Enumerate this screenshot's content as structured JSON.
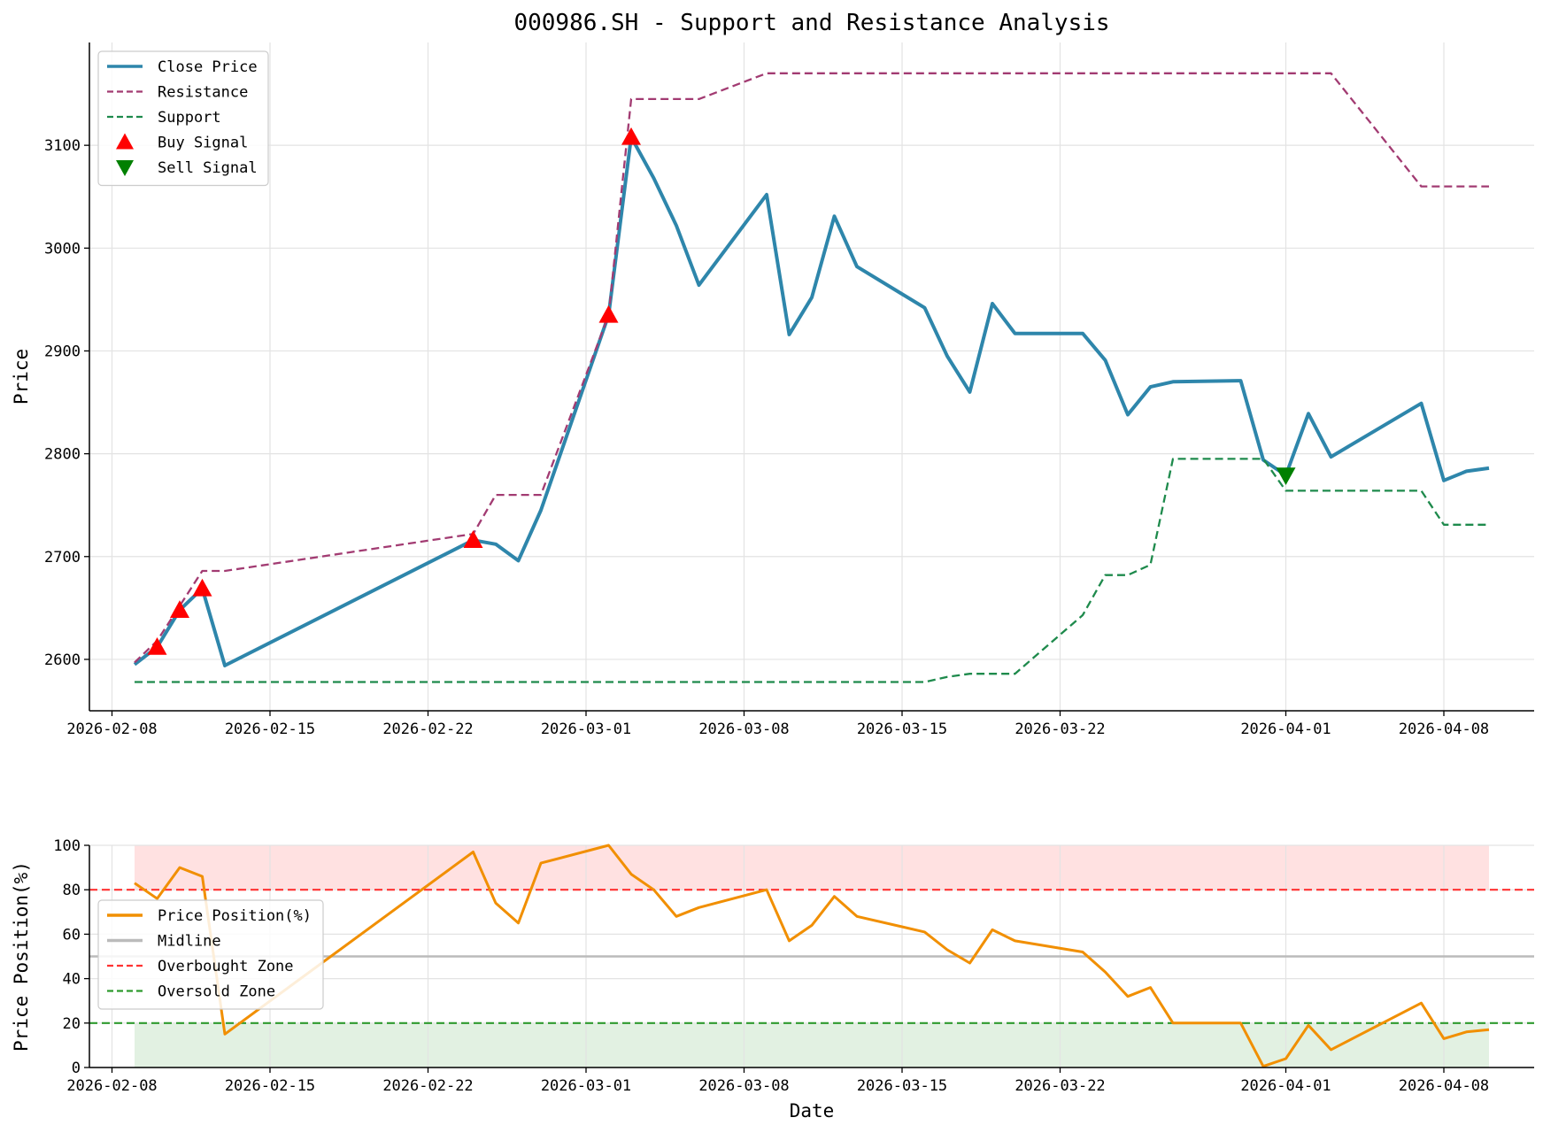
{
  "chart_data": [
    {
      "type": "line",
      "title": "000986.SH - Support and Resistance Analysis",
      "xlabel": "",
      "ylabel": "Price",
      "xlim": [
        "2026-02-07",
        "2026-04-12"
      ],
      "ylim": [
        2550,
        3200
      ],
      "grid": true,
      "legend_position": "top-left",
      "xticks": [
        "2026-02-08",
        "2026-02-15",
        "2026-02-22",
        "2026-03-01",
        "2026-03-08",
        "2026-03-15",
        "2026-03-22",
        "2026-04-01",
        "2026-04-08"
      ],
      "yticks": [
        2600,
        2700,
        2800,
        2900,
        3000,
        3100
      ],
      "x": [
        "2026-02-09",
        "2026-02-10",
        "2026-02-11",
        "2026-02-12",
        "2026-02-13",
        "2026-02-24",
        "2026-02-25",
        "2026-02-26",
        "2026-02-27",
        "2026-03-02",
        "2026-03-03",
        "2026-03-04",
        "2026-03-05",
        "2026-03-06",
        "2026-03-09",
        "2026-03-10",
        "2026-03-11",
        "2026-03-12",
        "2026-03-13",
        "2026-03-16",
        "2026-03-17",
        "2026-03-18",
        "2026-03-19",
        "2026-03-20",
        "2026-03-23",
        "2026-03-24",
        "2026-03-25",
        "2026-03-26",
        "2026-03-27",
        "2026-03-30",
        "2026-03-31",
        "2026-04-01",
        "2026-04-02",
        "2026-04-03",
        "2026-04-07",
        "2026-04-08",
        "2026-04-09",
        "2026-04-10"
      ],
      "series": [
        {
          "name": "Close Price",
          "style": "solid",
          "color": "#2e86ab",
          "values": [
            2595,
            2612,
            2648,
            2669,
            2594,
            2716,
            2712,
            2696,
            2745,
            2935,
            3108,
            3068,
            3022,
            2964,
            3052,
            2916,
            2952,
            3031,
            2982,
            2942,
            2895,
            2860,
            2946,
            2917,
            2917,
            2891,
            2838,
            2865,
            2870,
            2871,
            2794,
            2779,
            2839,
            2797,
            2849,
            2774,
            2783,
            2786
          ]
        },
        {
          "name": "Resistance",
          "style": "dashed",
          "color": "#a23b72",
          "values": [
            2597,
            2618,
            2652,
            2686,
            2686,
            2722,
            2760,
            2760,
            2760,
            2935,
            3145,
            3145,
            3145,
            3145,
            3170,
            3170,
            3170,
            3170,
            3170,
            3170,
            3170,
            3170,
            3170,
            3170,
            3170,
            3170,
            3170,
            3170,
            3170,
            3170,
            3170,
            3170,
            3170,
            3170,
            3060,
            3060,
            3060,
            3060
          ]
        },
        {
          "name": "Support",
          "style": "dashed",
          "color": "#1e8a4c",
          "values": [
            2578,
            2578,
            2578,
            2578,
            2578,
            2578,
            2578,
            2578,
            2578,
            2578,
            2578,
            2578,
            2578,
            2578,
            2578,
            2578,
            2578,
            2578,
            2578,
            2578,
            2583,
            2586,
            2586,
            2586,
            2643,
            2682,
            2682,
            2692,
            2795,
            2795,
            2795,
            2764,
            2764,
            2764,
            2764,
            2731,
            2731,
            2731
          ]
        }
      ],
      "markers": [
        {
          "name": "Buy Signal",
          "shape": "triangle-up",
          "color": "#ff0000",
          "points": [
            {
              "x": "2026-02-10",
              "y": 2612
            },
            {
              "x": "2026-02-11",
              "y": 2648
            },
            {
              "x": "2026-02-12",
              "y": 2669
            },
            {
              "x": "2026-02-24",
              "y": 2716
            },
            {
              "x": "2026-03-02",
              "y": 2935
            },
            {
              "x": "2026-03-03",
              "y": 3108
            }
          ]
        },
        {
          "name": "Sell Signal",
          "shape": "triangle-down",
          "color": "#008000",
          "points": [
            {
              "x": "2026-04-01",
              "y": 2779
            }
          ]
        }
      ]
    },
    {
      "type": "line",
      "title": "",
      "xlabel": "Date",
      "ylabel": "Price Position(%)",
      "xlim": [
        "2026-02-07",
        "2026-04-12"
      ],
      "ylim": [
        0,
        100
      ],
      "grid": true,
      "legend_position": "center-left",
      "xticks": [
        "2026-02-08",
        "2026-02-15",
        "2026-02-22",
        "2026-03-01",
        "2026-03-08",
        "2026-03-15",
        "2026-03-22",
        "2026-04-01",
        "2026-04-08"
      ],
      "yticks": [
        0,
        20,
        40,
        60,
        80,
        100
      ],
      "x": [
        "2026-02-09",
        "2026-02-10",
        "2026-02-11",
        "2026-02-12",
        "2026-02-13",
        "2026-02-24",
        "2026-02-25",
        "2026-02-26",
        "2026-02-27",
        "2026-03-02",
        "2026-03-03",
        "2026-03-04",
        "2026-03-05",
        "2026-03-06",
        "2026-03-09",
        "2026-03-10",
        "2026-03-11",
        "2026-03-12",
        "2026-03-13",
        "2026-03-16",
        "2026-03-17",
        "2026-03-18",
        "2026-03-19",
        "2026-03-20",
        "2026-03-23",
        "2026-03-24",
        "2026-03-25",
        "2026-03-26",
        "2026-03-27",
        "2026-03-30",
        "2026-03-31",
        "2026-04-01",
        "2026-04-02",
        "2026-04-03",
        "2026-04-07",
        "2026-04-08",
        "2026-04-09",
        "2026-04-10"
      ],
      "series": [
        {
          "name": "Price Position(%)",
          "style": "solid",
          "color": "#f18f01",
          "values": [
            83,
            76,
            90,
            86,
            15,
            97,
            74,
            65,
            92,
            100,
            87,
            80,
            68,
            72,
            80,
            57,
            64,
            77,
            68,
            61,
            53,
            47,
            62,
            57,
            52,
            43,
            32,
            36,
            20,
            20,
            0.5,
            4,
            19,
            8,
            29,
            13,
            16,
            17
          ]
        },
        {
          "name": "Midline",
          "style": "solid",
          "color": "#bbbbbb",
          "constant": 50
        },
        {
          "name": "Overbought Zone",
          "style": "dashed",
          "color": "#ff3333",
          "constant": 80
        },
        {
          "name": "Oversold Zone",
          "style": "dashed",
          "color": "#2e9a2e",
          "constant": 20
        }
      ],
      "bands": [
        {
          "from": 80,
          "to": 100,
          "color": "#ffe1e1"
        },
        {
          "from": 0,
          "to": 20,
          "color": "#e2f1e2"
        }
      ]
    }
  ]
}
